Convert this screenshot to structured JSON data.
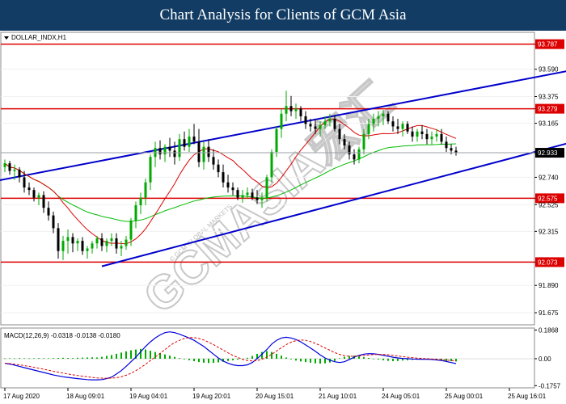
{
  "banner": {
    "title": "Chart Analysis for Clients of GCM Asia"
  },
  "watermark": {
    "brand": "GCMASIA宏汇",
    "sub": "© GCM GLOBAL MARKETS"
  },
  "colors": {
    "bull": "#00aa00",
    "bear": "#000000",
    "channel": "#0000cc",
    "level": "#dd0000",
    "ma_fast": "#dd0000",
    "ma_slow": "#00bb00",
    "macd_line": "#0000dd",
    "signal_line": "#dd0000",
    "histogram": "#00aa00",
    "price_tag": "#000000"
  },
  "chart_data": [
    {
      "type": "candlestick",
      "symbol_label": "DOLLAR_INDX,H1",
      "ylim": [
        91.58,
        93.88
      ],
      "y_ticks": [
        {
          "value": 93.787,
          "label": "93.787",
          "highlight": "level"
        },
        {
          "value": 93.59,
          "label": "93.590"
        },
        {
          "value": 93.375,
          "label": "93.375"
        },
        {
          "value": 93.279,
          "label": "93.279",
          "highlight": "level"
        },
        {
          "value": 93.165,
          "label": "93.165"
        },
        {
          "value": 92.933,
          "label": "92.933",
          "highlight": "price"
        },
        {
          "value": 92.74,
          "label": "92.740"
        },
        {
          "value": 92.575,
          "label": "92.575",
          "highlight": "level"
        },
        {
          "value": 92.525,
          "label": "92.525"
        },
        {
          "value": 92.315,
          "label": "92.315"
        },
        {
          "value": 92.073,
          "label": "92.073",
          "highlight": "level"
        },
        {
          "value": 91.89,
          "label": "91.890"
        },
        {
          "value": 91.675,
          "label": "91.675"
        }
      ],
      "horizontal_levels": [
        93.787,
        93.279,
        92.575,
        92.073
      ],
      "current_price": 92.933,
      "trendlines": [
        {
          "x1": -2,
          "y1": 92.71,
          "x2": 152,
          "y2": 93.84
        },
        {
          "x1": 20,
          "y1": 92.04,
          "x2": 152,
          "y2": 93.37
        }
      ],
      "candles": [
        [
          92.82,
          92.88,
          92.78,
          92.85
        ],
        [
          92.85,
          92.87,
          92.76,
          92.79
        ],
        [
          92.79,
          92.84,
          92.72,
          92.8
        ],
        [
          92.8,
          92.82,
          92.7,
          92.74
        ],
        [
          92.74,
          92.79,
          92.62,
          92.66
        ],
        [
          92.66,
          92.7,
          92.6,
          92.64
        ],
        [
          92.64,
          92.66,
          92.55,
          92.58
        ],
        [
          92.58,
          92.62,
          92.52,
          92.6
        ],
        [
          92.6,
          92.63,
          92.46,
          92.5
        ],
        [
          92.5,
          92.55,
          92.4,
          92.44
        ],
        [
          92.44,
          92.47,
          92.3,
          92.34
        ],
        [
          92.34,
          92.38,
          92.1,
          92.16
        ],
        [
          92.16,
          92.28,
          92.09,
          92.24
        ],
        [
          92.24,
          92.33,
          92.14,
          92.27
        ],
        [
          92.27,
          92.3,
          92.15,
          92.22
        ],
        [
          92.22,
          92.26,
          92.16,
          92.24
        ],
        [
          92.24,
          92.27,
          92.13,
          92.16
        ],
        [
          92.16,
          92.2,
          92.1,
          92.18
        ],
        [
          92.18,
          92.24,
          92.14,
          92.22
        ],
        [
          92.22,
          92.28,
          92.18,
          92.26
        ],
        [
          92.26,
          92.3,
          92.16,
          92.2
        ],
        [
          92.2,
          92.26,
          92.15,
          92.24
        ],
        [
          92.24,
          92.3,
          92.2,
          92.26
        ],
        [
          92.26,
          92.3,
          92.14,
          92.18
        ],
        [
          92.18,
          92.24,
          92.12,
          92.2
        ],
        [
          92.2,
          92.28,
          92.17,
          92.25
        ],
        [
          92.25,
          92.42,
          92.2,
          92.4
        ],
        [
          92.4,
          92.55,
          92.34,
          92.52
        ],
        [
          92.52,
          92.62,
          92.45,
          92.58
        ],
        [
          92.58,
          92.73,
          92.52,
          92.7
        ],
        [
          92.7,
          92.92,
          92.64,
          92.9
        ],
        [
          92.9,
          93.02,
          92.82,
          92.97
        ],
        [
          92.97,
          93.03,
          92.88,
          92.92
        ],
        [
          92.92,
          93.0,
          92.86,
          92.98
        ],
        [
          92.98,
          93.05,
          92.9,
          92.95
        ],
        [
          92.95,
          93.02,
          92.84,
          92.9
        ],
        [
          92.9,
          93.08,
          92.87,
          93.04
        ],
        [
          93.04,
          93.1,
          92.95,
          92.98
        ],
        [
          92.98,
          93.12,
          92.94,
          93.06
        ],
        [
          93.06,
          93.16,
          93.0,
          93.02
        ],
        [
          93.02,
          93.12,
          92.82,
          92.86
        ],
        [
          92.86,
          93.02,
          92.8,
          92.98
        ],
        [
          92.98,
          93.04,
          92.86,
          92.9
        ],
        [
          92.9,
          92.96,
          92.8,
          92.84
        ],
        [
          92.84,
          92.88,
          92.74,
          92.78
        ],
        [
          92.78,
          92.84,
          92.66,
          92.7
        ],
        [
          92.7,
          92.76,
          92.62,
          92.66
        ],
        [
          92.66,
          92.7,
          92.6,
          92.64
        ],
        [
          92.64,
          92.66,
          92.56,
          92.58
        ],
        [
          92.58,
          92.64,
          92.54,
          92.6
        ],
        [
          92.6,
          92.66,
          92.57,
          92.62
        ],
        [
          92.62,
          92.65,
          92.56,
          92.58
        ],
        [
          92.58,
          92.64,
          92.53,
          92.56
        ],
        [
          92.56,
          92.62,
          92.5,
          92.58
        ],
        [
          92.58,
          92.76,
          92.55,
          92.74
        ],
        [
          92.74,
          92.96,
          92.7,
          92.94
        ],
        [
          92.94,
          93.14,
          92.9,
          93.12
        ],
        [
          93.12,
          93.28,
          93.05,
          93.24
        ],
        [
          93.24,
          93.42,
          93.18,
          93.3
        ],
        [
          93.3,
          93.38,
          93.22,
          93.26
        ],
        [
          93.26,
          93.32,
          93.2,
          93.28
        ],
        [
          93.28,
          93.3,
          93.18,
          93.22
        ],
        [
          93.22,
          93.26,
          93.12,
          93.16
        ],
        [
          93.16,
          93.2,
          93.1,
          93.14
        ],
        [
          93.14,
          93.2,
          93.08,
          93.12
        ],
        [
          93.12,
          93.18,
          93.06,
          93.15
        ],
        [
          93.15,
          93.22,
          93.12,
          93.18
        ],
        [
          93.18,
          93.24,
          93.14,
          93.2
        ],
        [
          93.2,
          93.23,
          93.1,
          93.12
        ],
        [
          93.12,
          93.16,
          93.0,
          93.04
        ],
        [
          93.04,
          93.08,
          92.96,
          92.99
        ],
        [
          92.99,
          93.02,
          92.88,
          92.92
        ],
        [
          92.92,
          92.96,
          92.84,
          92.88
        ],
        [
          92.88,
          92.98,
          92.85,
          92.96
        ],
        [
          92.96,
          93.12,
          92.92,
          93.08
        ],
        [
          93.08,
          93.2,
          93.04,
          93.16
        ],
        [
          93.16,
          93.24,
          93.1,
          93.2
        ],
        [
          93.2,
          93.26,
          93.14,
          93.22
        ],
        [
          93.22,
          93.27,
          93.15,
          93.24
        ],
        [
          93.24,
          93.26,
          93.16,
          93.18
        ],
        [
          93.18,
          93.22,
          93.1,
          93.14
        ],
        [
          93.14,
          93.2,
          93.08,
          93.12
        ],
        [
          93.12,
          93.18,
          93.06,
          93.16
        ],
        [
          93.16,
          93.18,
          93.08,
          93.1
        ],
        [
          93.1,
          93.14,
          93.02,
          93.06
        ],
        [
          93.06,
          93.12,
          93.02,
          93.1
        ],
        [
          93.1,
          93.15,
          93.04,
          93.08
        ],
        [
          93.08,
          93.12,
          93.0,
          93.04
        ],
        [
          93.04,
          93.1,
          93.0,
          93.06
        ],
        [
          93.06,
          93.12,
          93.02,
          93.08
        ],
        [
          93.08,
          93.12,
          93.0,
          93.02
        ],
        [
          93.02,
          93.06,
          92.94,
          92.97
        ],
        [
          92.97,
          93.0,
          92.92,
          92.95
        ],
        [
          92.95,
          92.98,
          92.91,
          92.93
        ]
      ]
    },
    {
      "type": "line",
      "label": "MACD(12,26,9) -0.0318 -0.0138 -0.0180",
      "ylim": [
        -0.19,
        0.2
      ],
      "y_ticks": [
        {
          "value": 0.1868,
          "label": "0.1868"
        },
        {
          "value": 0.0,
          "label": "0.00"
        },
        {
          "value": -0.1757,
          "label": "-0.1757"
        }
      ],
      "series": [
        {
          "type": "histogram",
          "values": [
            0.002,
            0.003,
            0.002,
            0.004,
            0.003,
            0.002,
            0.003,
            0.004,
            0.003,
            0.003,
            0.004,
            0.005,
            0.006,
            0.005,
            0.004,
            0.006,
            0.007,
            0.008,
            0.009,
            0.008,
            0.012,
            0.018,
            0.024,
            0.032,
            0.04,
            0.048,
            0.055,
            0.06,
            0.064,
            0.06,
            0.052,
            0.044,
            0.036,
            0.028,
            0.02,
            0.012,
            0.004,
            -0.004,
            -0.01,
            -0.016,
            -0.022,
            -0.026,
            -0.028,
            -0.027,
            -0.024,
            -0.02,
            -0.015,
            -0.01,
            -0.006,
            -0.002,
            0.006,
            0.018,
            0.032,
            0.044,
            0.05,
            0.044,
            0.032,
            0.02,
            0.008,
            -0.004,
            -0.012,
            -0.018,
            -0.022,
            -0.026,
            -0.03,
            -0.032,
            -0.03,
            -0.025,
            -0.015,
            0.003,
            0.012,
            0.018,
            0.02,
            0.015,
            0.01,
            0.005,
            0.0,
            -0.005,
            -0.01,
            -0.014,
            -0.016,
            -0.015,
            -0.012,
            -0.01,
            -0.008,
            -0.006,
            -0.005,
            -0.006,
            -0.008,
            -0.01,
            -0.012,
            -0.015,
            -0.016,
            -0.018
          ]
        },
        {
          "type": "line",
          "name": "macd",
          "values": [
            -0.03,
            -0.035,
            -0.042,
            -0.05,
            -0.058,
            -0.066,
            -0.074,
            -0.082,
            -0.09,
            -0.098,
            -0.106,
            -0.112,
            -0.118,
            -0.122,
            -0.126,
            -0.13,
            -0.133,
            -0.136,
            -0.138,
            -0.138,
            -0.136,
            -0.13,
            -0.12,
            -0.1,
            -0.078,
            -0.05,
            -0.02,
            0.01,
            0.045,
            0.08,
            0.11,
            0.135,
            0.155,
            0.17,
            0.175,
            0.17,
            0.16,
            0.148,
            0.135,
            0.12,
            0.1,
            0.08,
            0.055,
            0.03,
            0.005,
            -0.015,
            -0.03,
            -0.04,
            -0.045,
            -0.045,
            -0.04,
            -0.025,
            0.0,
            0.03,
            0.06,
            0.095,
            0.12,
            0.135,
            0.14,
            0.135,
            0.125,
            0.11,
            0.09,
            0.07,
            0.048,
            0.025,
            0.005,
            -0.01,
            -0.02,
            -0.025,
            -0.02,
            -0.005,
            0.01,
            0.022,
            0.03,
            0.033,
            0.032,
            0.028,
            0.022,
            0.016,
            0.01,
            0.005,
            0.002,
            0.0,
            -0.002,
            -0.003,
            -0.004,
            -0.004,
            -0.005,
            -0.008,
            -0.012,
            -0.018,
            -0.025,
            -0.032
          ]
        },
        {
          "type": "line",
          "name": "signal",
          "values": [
            -0.03,
            -0.032,
            -0.036,
            -0.04,
            -0.045,
            -0.05,
            -0.056,
            -0.062,
            -0.068,
            -0.075,
            -0.082,
            -0.088,
            -0.094,
            -0.1,
            -0.105,
            -0.11,
            -0.114,
            -0.118,
            -0.122,
            -0.125,
            -0.127,
            -0.128,
            -0.127,
            -0.124,
            -0.118,
            -0.108,
            -0.095,
            -0.078,
            -0.058,
            -0.036,
            -0.012,
            0.012,
            0.035,
            0.06,
            0.085,
            0.105,
            0.12,
            0.132,
            0.138,
            0.138,
            0.132,
            0.122,
            0.108,
            0.092,
            0.074,
            0.056,
            0.038,
            0.022,
            0.008,
            -0.004,
            -0.012,
            -0.015,
            -0.012,
            -0.004,
            0.01,
            0.028,
            0.05,
            0.072,
            0.092,
            0.108,
            0.118,
            0.122,
            0.12,
            0.112,
            0.1,
            0.086,
            0.07,
            0.055,
            0.04,
            0.028,
            0.02,
            0.016,
            0.016,
            0.018,
            0.021,
            0.024,
            0.027,
            0.028,
            0.028,
            0.026,
            0.022,
            0.018,
            0.014,
            0.01,
            0.007,
            0.004,
            0.002,
            0.0,
            -0.002,
            -0.004,
            -0.006,
            -0.009,
            -0.012,
            -0.014
          ]
        }
      ]
    }
  ],
  "x_axis": {
    "tick_labels": [
      "17 Aug 2020",
      "18 Aug 09:01",
      "19 Aug 04:01",
      "19 Aug 20:01",
      "20 Aug 15:01",
      "21 Aug 10:01",
      "24 Aug 05:01",
      "25 Aug 00:01",
      "25 Aug 16:01"
    ],
    "tick_bars": [
      0,
      13,
      26,
      39,
      52,
      65,
      78,
      91,
      104
    ]
  }
}
